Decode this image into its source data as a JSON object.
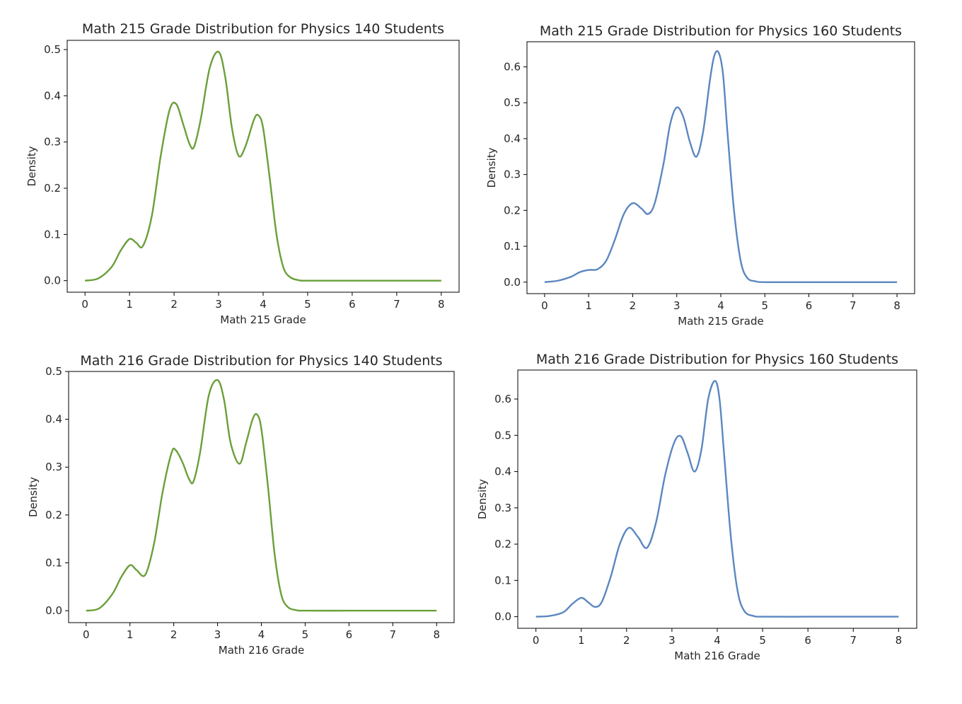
{
  "chart_data": [
    {
      "type": "line",
      "title": "Math 215 Grade Distribution for Physics 140 Students",
      "xlabel": "Math 215 Grade",
      "ylabel": "Density",
      "xlim": [
        -0.4,
        8.4
      ],
      "ylim": [
        -0.025,
        0.52
      ],
      "xticks": [
        0,
        1,
        2,
        3,
        4,
        5,
        6,
        7,
        8
      ],
      "yticks": [
        0.0,
        0.1,
        0.2,
        0.3,
        0.4,
        0.5
      ],
      "ytick_labels": [
        "0.0",
        "0.1",
        "0.2",
        "0.3",
        "0.4",
        "0.5"
      ],
      "grid": false,
      "line_color": "#6a9f3a",
      "series": [
        {
          "x": [
            0,
            0.3,
            0.6,
            0.8,
            1.0,
            1.15,
            1.3,
            1.5,
            1.7,
            1.9,
            2.05,
            2.2,
            2.35,
            2.45,
            2.6,
            2.8,
            3.0,
            3.15,
            3.3,
            3.45,
            3.6,
            3.8,
            3.9,
            4.0,
            4.15,
            4.3,
            4.45,
            4.6,
            4.8,
            5.0,
            6.0,
            7.0,
            8.0
          ],
          "y": [
            0.0,
            0.005,
            0.03,
            0.065,
            0.09,
            0.082,
            0.075,
            0.14,
            0.27,
            0.37,
            0.382,
            0.34,
            0.295,
            0.29,
            0.35,
            0.46,
            0.495,
            0.44,
            0.33,
            0.27,
            0.29,
            0.35,
            0.357,
            0.33,
            0.22,
            0.1,
            0.03,
            0.008,
            0.001,
            0.0,
            0.0,
            0.0,
            0.0
          ]
        }
      ]
    },
    {
      "type": "line",
      "title": "Math 215 Grade Distribution for Physics 160 Students",
      "xlabel": "Math 215 Grade",
      "ylabel": "Density",
      "xlim": [
        -0.4,
        8.4
      ],
      "ylim": [
        -0.032,
        0.67
      ],
      "xticks": [
        0,
        1,
        2,
        3,
        4,
        5,
        6,
        7,
        8
      ],
      "yticks": [
        0.0,
        0.1,
        0.2,
        0.3,
        0.4,
        0.5,
        0.6
      ],
      "ytick_labels": [
        "0.0",
        "0.1",
        "0.2",
        "0.3",
        "0.4",
        "0.5",
        "0.6"
      ],
      "grid": false,
      "line_color": "#5b87c0",
      "series": [
        {
          "x": [
            0,
            0.3,
            0.6,
            0.8,
            1.0,
            1.2,
            1.4,
            1.6,
            1.8,
            2.0,
            2.2,
            2.35,
            2.5,
            2.7,
            2.85,
            3.0,
            3.15,
            3.3,
            3.45,
            3.6,
            3.75,
            3.85,
            3.95,
            4.05,
            4.15,
            4.3,
            4.45,
            4.6,
            4.8,
            5.0,
            6.0,
            7.0,
            8.0
          ],
          "y": [
            0.0,
            0.004,
            0.015,
            0.028,
            0.034,
            0.036,
            0.06,
            0.12,
            0.19,
            0.22,
            0.205,
            0.19,
            0.22,
            0.33,
            0.44,
            0.487,
            0.46,
            0.39,
            0.35,
            0.42,
            0.56,
            0.63,
            0.64,
            0.58,
            0.42,
            0.2,
            0.06,
            0.012,
            0.002,
            0.0,
            0.0,
            0.0,
            0.0
          ]
        }
      ]
    },
    {
      "type": "line",
      "title": "Math 216 Grade Distribution for Physics 140 Students",
      "xlabel": "Math 216 Grade",
      "ylabel": "Density",
      "xlim": [
        -0.4,
        8.4
      ],
      "ylim": [
        -0.025,
        0.5
      ],
      "xticks": [
        0,
        1,
        2,
        3,
        4,
        5,
        6,
        7,
        8
      ],
      "yticks": [
        0.0,
        0.1,
        0.2,
        0.3,
        0.4,
        0.5
      ],
      "ytick_labels": [
        "0.0",
        "0.1",
        "0.2",
        "0.3",
        "0.4",
        "0.5"
      ],
      "grid": false,
      "line_color": "#6a9f3a",
      "series": [
        {
          "x": [
            0,
            0.3,
            0.6,
            0.8,
            1.0,
            1.15,
            1.35,
            1.55,
            1.75,
            1.95,
            2.05,
            2.2,
            2.35,
            2.45,
            2.6,
            2.8,
            3.0,
            3.15,
            3.3,
            3.5,
            3.65,
            3.8,
            3.9,
            4.0,
            4.15,
            4.3,
            4.45,
            4.6,
            4.8,
            5.0,
            6.0,
            7.0,
            8.0
          ],
          "y": [
            0.0,
            0.005,
            0.035,
            0.07,
            0.095,
            0.085,
            0.075,
            0.14,
            0.25,
            0.33,
            0.335,
            0.31,
            0.275,
            0.27,
            0.33,
            0.45,
            0.482,
            0.44,
            0.35,
            0.307,
            0.35,
            0.4,
            0.41,
            0.38,
            0.26,
            0.12,
            0.035,
            0.008,
            0.001,
            0.0,
            0.0,
            0.0,
            0.0
          ]
        }
      ]
    },
    {
      "type": "line",
      "title": "Math 216 Grade Distribution for Physics 160 Students",
      "xlabel": "Math 216 Grade",
      "ylabel": "Density",
      "xlim": [
        -0.4,
        8.4
      ],
      "ylim": [
        -0.032,
        0.68
      ],
      "xticks": [
        0,
        1,
        2,
        3,
        4,
        5,
        6,
        7,
        8
      ],
      "yticks": [
        0.0,
        0.1,
        0.2,
        0.3,
        0.4,
        0.5,
        0.6
      ],
      "ytick_labels": [
        "0.0",
        "0.1",
        "0.2",
        "0.3",
        "0.4",
        "0.5",
        "0.6"
      ],
      "grid": false,
      "line_color": "#5b87c0",
      "series": [
        {
          "x": [
            0,
            0.3,
            0.6,
            0.8,
            1.0,
            1.15,
            1.3,
            1.45,
            1.65,
            1.85,
            2.05,
            2.25,
            2.45,
            2.65,
            2.85,
            3.05,
            3.2,
            3.35,
            3.5,
            3.65,
            3.8,
            3.95,
            4.05,
            4.15,
            4.3,
            4.45,
            4.6,
            4.8,
            5.0,
            6.0,
            7.0,
            8.0
          ],
          "y": [
            0.0,
            0.002,
            0.012,
            0.035,
            0.052,
            0.04,
            0.027,
            0.04,
            0.11,
            0.2,
            0.245,
            0.22,
            0.19,
            0.26,
            0.39,
            0.48,
            0.497,
            0.45,
            0.4,
            0.46,
            0.6,
            0.65,
            0.6,
            0.45,
            0.22,
            0.07,
            0.015,
            0.002,
            0.0,
            0.0,
            0.0,
            0.0
          ]
        }
      ]
    }
  ]
}
